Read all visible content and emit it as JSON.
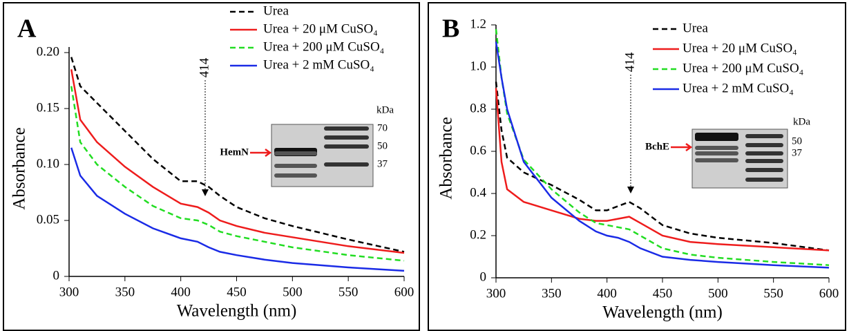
{
  "chart_data": [
    {
      "type": "line",
      "panel_label": "A",
      "xlabel": "Wavelength (nm)",
      "ylabel": "Absorbance",
      "x": [
        302,
        310,
        325,
        350,
        375,
        400,
        415,
        425,
        435,
        450,
        475,
        500,
        550,
        600
      ],
      "xlim": [
        300,
        600
      ],
      "xticks": [
        300,
        350,
        400,
        450,
        500,
        550,
        600
      ],
      "ylim": [
        0,
        0.205
      ],
      "yticks": [
        0,
        0.05,
        {
          "value": 0.1,
          "label": "0.10"
        },
        0.15,
        {
          "value": 0.2,
          "label": "0.20"
        }
      ],
      "series": [
        {
          "name": "Urea",
          "color": "#000000",
          "style": "dashed",
          "values": [
            0.196,
            0.17,
            0.155,
            0.13,
            0.105,
            0.085,
            0.085,
            0.08,
            0.072,
            0.062,
            0.052,
            0.045,
            0.033,
            0.022
          ]
        },
        {
          "name": "Urea + 20 μM CuSO₄",
          "color": "#ee1c1c",
          "style": "solid",
          "values": [
            0.185,
            0.14,
            0.12,
            0.098,
            0.08,
            0.065,
            0.062,
            0.057,
            0.05,
            0.045,
            0.039,
            0.035,
            0.027,
            0.021
          ]
        },
        {
          "name": "Urea + 200 μM CuSO₄",
          "color": "#22dd22",
          "style": "dashed",
          "values": [
            0.17,
            0.12,
            0.1,
            0.08,
            0.063,
            0.052,
            0.05,
            0.046,
            0.04,
            0.036,
            0.031,
            0.026,
            0.019,
            0.014
          ]
        },
        {
          "name": "Urea + 2 mM CuSO₄",
          "color": "#1a2be6",
          "style": "solid",
          "values": [
            0.115,
            0.09,
            0.072,
            0.056,
            0.043,
            0.034,
            0.031,
            0.026,
            0.022,
            0.019,
            0.015,
            0.012,
            0.008,
            0.005
          ]
        }
      ],
      "annotation": "414",
      "inset": {
        "unit": "kDa",
        "markers": [
          70,
          50,
          37
        ],
        "protein": "HemN"
      }
    },
    {
      "type": "line",
      "panel_label": "B",
      "xlabel": "Wavelength (nm)",
      "ylabel": "Absorbance",
      "x": [
        300,
        305,
        310,
        325,
        350,
        375,
        390,
        400,
        410,
        420,
        430,
        450,
        475,
        500,
        550,
        600
      ],
      "xlim": [
        300,
        600
      ],
      "xticks": [
        300,
        350,
        400,
        450,
        500,
        550,
        600
      ],
      "ylim": [
        0,
        1.2
      ],
      "yticks": [
        0,
        0.2,
        0.4,
        0.6,
        0.8,
        {
          "value": 1,
          "label": "1.0"
        },
        1.2
      ],
      "series": [
        {
          "name": "Urea",
          "color": "#000000",
          "style": "dashed",
          "values": [
            0.93,
            0.7,
            0.57,
            0.5,
            0.44,
            0.37,
            0.32,
            0.32,
            0.34,
            0.36,
            0.33,
            0.25,
            0.21,
            0.19,
            0.165,
            0.13
          ]
        },
        {
          "name": "Urea + 20 μM CuSO₄",
          "color": "#ee1c1c",
          "style": "solid",
          "values": [
            0.9,
            0.55,
            0.42,
            0.36,
            0.32,
            0.28,
            0.27,
            0.27,
            0.28,
            0.29,
            0.26,
            0.2,
            0.17,
            0.16,
            0.145,
            0.13
          ]
        },
        {
          "name": "Urea + 200 μM CuSO₄",
          "color": "#22dd22",
          "style": "dashed",
          "values": [
            1.18,
            0.95,
            0.78,
            0.56,
            0.42,
            0.31,
            0.26,
            0.25,
            0.24,
            0.23,
            0.2,
            0.14,
            0.11,
            0.095,
            0.075,
            0.06
          ]
        },
        {
          "name": "Urea + 2 mM CuSO₄",
          "color": "#1a2be6",
          "style": "solid",
          "values": [
            1.12,
            0.95,
            0.8,
            0.55,
            0.38,
            0.27,
            0.22,
            0.2,
            0.19,
            0.17,
            0.14,
            0.1,
            0.085,
            0.075,
            0.06,
            0.048
          ]
        }
      ],
      "annotation": "414",
      "inset": {
        "unit": "kDa",
        "markers": [
          50,
          37
        ],
        "protein": "BchE"
      }
    }
  ]
}
